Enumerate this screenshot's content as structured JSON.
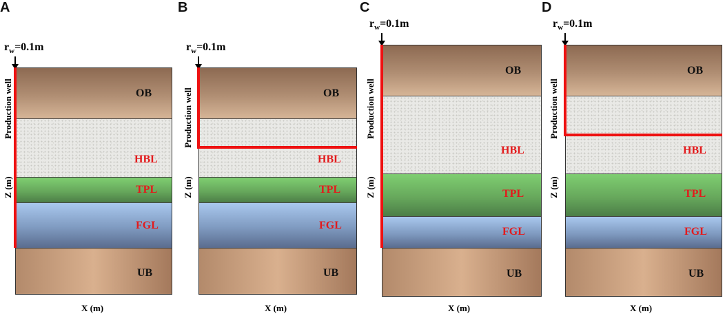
{
  "panels": [
    {
      "letter": "A",
      "rw_base": "r",
      "rw_sub": "w",
      "rw_value": "=0.1m",
      "ylabel_well": "Production well",
      "ylabel_axis": "Z (m)",
      "xlabel": "X (m)",
      "layers": {
        "ob": "OB",
        "hbl": "HBL",
        "tpl": "TPL",
        "fgl": "FGL",
        "ub": "UB"
      }
    },
    {
      "letter": "B",
      "rw_base": "r",
      "rw_sub": "w",
      "rw_value": "=0.1m",
      "ylabel_well": "Production well",
      "ylabel_axis": "Z (m)",
      "xlabel": "X (m)",
      "layers": {
        "ob": "OB",
        "hbl": "HBL",
        "tpl": "TPL",
        "fgl": "FGL",
        "ub": "UB"
      }
    },
    {
      "letter": "C",
      "rw_base": "r",
      "rw_sub": "w",
      "rw_value": "=0.1m",
      "ylabel_well": "Production well",
      "ylabel_axis": "Z (m)",
      "xlabel": "X (m)",
      "layers": {
        "ob": "OB",
        "hbl": "HBL",
        "tpl": "TPL",
        "fgl": "FGL",
        "ub": "UB"
      }
    },
    {
      "letter": "D",
      "rw_base": "r",
      "rw_sub": "w",
      "rw_value": "=0.1m",
      "ylabel_well": "Production well",
      "ylabel_axis": "Z (m)",
      "xlabel": "X (m)",
      "layers": {
        "ob": "OB",
        "hbl": "HBL",
        "tpl": "TPL",
        "fgl": "FGL",
        "ub": "UB"
      }
    }
  ],
  "colors": {
    "well": "#ee1111",
    "label_red": "#e31a1c",
    "label_dark": "#111111"
  }
}
